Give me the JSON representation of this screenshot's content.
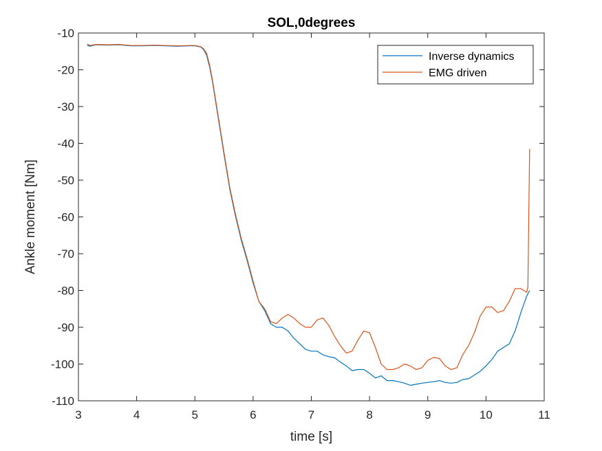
{
  "chart_data": {
    "type": "line",
    "title": "SOL,0degrees",
    "xlabel": "time  [s]",
    "ylabel": "Ankle moment [Nm]",
    "xlim": [
      3,
      11
    ],
    "ylim": [
      -110,
      -10
    ],
    "xticks": [
      3,
      4,
      5,
      6,
      7,
      8,
      9,
      10,
      11
    ],
    "yticks": [
      -10,
      -20,
      -30,
      -40,
      -50,
      -60,
      -70,
      -80,
      -90,
      -100,
      -110
    ],
    "grid": false,
    "legend_position": "top-right",
    "series": [
      {
        "name": "Inverse dynamics",
        "color": "#0072BD",
        "x": [
          3.15,
          3.2,
          3.3,
          3.5,
          3.7,
          3.9,
          4.1,
          4.3,
          4.5,
          4.7,
          4.9,
          5.0,
          5.1,
          5.15,
          5.2,
          5.25,
          5.3,
          5.4,
          5.5,
          5.6,
          5.7,
          5.8,
          5.9,
          6.0,
          6.1,
          6.2,
          6.3,
          6.4,
          6.5,
          6.6,
          6.7,
          6.8,
          6.9,
          7.0,
          7.1,
          7.2,
          7.3,
          7.4,
          7.5,
          7.6,
          7.7,
          7.8,
          7.9,
          8.0,
          8.1,
          8.2,
          8.3,
          8.4,
          8.5,
          8.6,
          8.7,
          8.8,
          8.9,
          9.0,
          9.1,
          9.2,
          9.3,
          9.4,
          9.5,
          9.6,
          9.7,
          9.8,
          9.9,
          10.0,
          10.1,
          10.2,
          10.3,
          10.4,
          10.5,
          10.6,
          10.7,
          10.75
        ],
        "values": [
          -13.3,
          -13.6,
          -13.2,
          -13.3,
          -13.2,
          -13.5,
          -13.5,
          -13.4,
          -13.5,
          -13.6,
          -13.5,
          -13.5,
          -13.8,
          -14.5,
          -16.0,
          -19.0,
          -23.0,
          -33.0,
          -43.0,
          -52.5,
          -60.0,
          -66.5,
          -72.0,
          -78.0,
          -83.0,
          -85.5,
          -89.0,
          -90.0,
          -90.0,
          -91.0,
          -93.0,
          -94.5,
          -96.0,
          -96.5,
          -96.5,
          -97.5,
          -98.0,
          -98.3,
          -99.5,
          -100.5,
          -101.8,
          -101.5,
          -101.5,
          -102.5,
          -103.8,
          -103.2,
          -104.5,
          -104.5,
          -104.8,
          -105.2,
          -105.8,
          -105.5,
          -105.2,
          -105.0,
          -104.8,
          -104.5,
          -105.0,
          -105.2,
          -105.0,
          -104.2,
          -104.0,
          -103.0,
          -102.0,
          -100.5,
          -98.8,
          -96.5,
          -95.5,
          -94.5,
          -91.0,
          -86.0,
          -81.5,
          -80.0
        ]
      },
      {
        "name": "EMG driven",
        "color": "#D95319",
        "x": [
          3.15,
          3.2,
          3.3,
          3.5,
          3.7,
          3.9,
          4.1,
          4.3,
          4.5,
          4.7,
          4.9,
          5.0,
          5.1,
          5.15,
          5.2,
          5.25,
          5.3,
          5.4,
          5.5,
          5.6,
          5.7,
          5.8,
          5.9,
          6.0,
          6.1,
          6.2,
          6.3,
          6.4,
          6.5,
          6.6,
          6.7,
          6.8,
          6.9,
          7.0,
          7.1,
          7.2,
          7.3,
          7.4,
          7.5,
          7.6,
          7.7,
          7.8,
          7.9,
          8.0,
          8.1,
          8.2,
          8.3,
          8.4,
          8.5,
          8.6,
          8.7,
          8.8,
          8.9,
          9.0,
          9.1,
          9.2,
          9.3,
          9.4,
          9.5,
          9.6,
          9.7,
          9.8,
          9.9,
          10.0,
          10.1,
          10.2,
          10.3,
          10.4,
          10.5,
          10.6,
          10.7,
          10.72,
          10.75
        ],
        "values": [
          -13.0,
          -13.4,
          -13.1,
          -13.2,
          -13.1,
          -13.4,
          -13.4,
          -13.3,
          -13.4,
          -13.5,
          -13.4,
          -13.4,
          -13.7,
          -14.3,
          -15.5,
          -18.5,
          -22.5,
          -32.5,
          -42.5,
          -52.0,
          -59.5,
          -66.0,
          -71.5,
          -77.5,
          -83.0,
          -85.0,
          -88.5,
          -89.0,
          -87.5,
          -86.5,
          -87.5,
          -89.0,
          -90.0,
          -90.0,
          -88.0,
          -87.5,
          -89.5,
          -92.5,
          -95.0,
          -97.0,
          -96.5,
          -93.5,
          -91.0,
          -91.5,
          -95.5,
          -100.0,
          -101.5,
          -101.5,
          -101.0,
          -100.0,
          -100.5,
          -101.5,
          -101.0,
          -99.0,
          -98.2,
          -98.5,
          -100.5,
          -101.5,
          -101.0,
          -97.5,
          -95.0,
          -91.5,
          -87.0,
          -84.5,
          -84.5,
          -86.0,
          -85.5,
          -83.0,
          -79.5,
          -79.5,
          -80.5,
          -79.0,
          -41.5
        ]
      }
    ]
  }
}
